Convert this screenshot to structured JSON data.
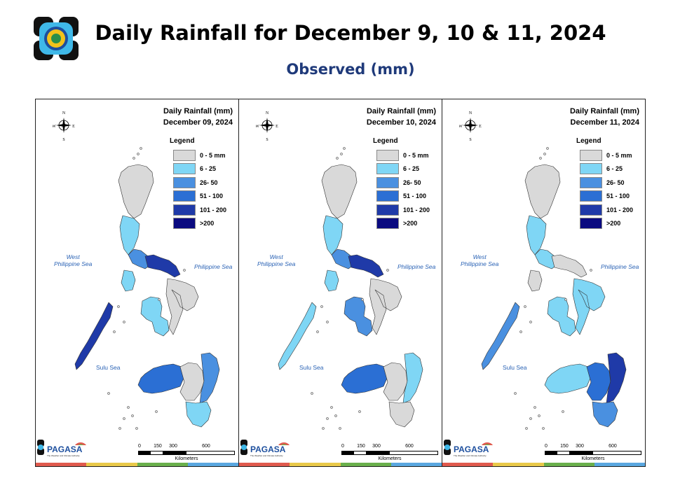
{
  "title": "Daily Rainfall for December 9, 10 & 11, 2024",
  "subtitle": "Observed (mm)",
  "colors": {
    "c0": "#d9d9d9",
    "c1": "#7fd6f5",
    "c2": "#4a90e0",
    "c3": "#2b6fd4",
    "c4": "#1f3aa8",
    "c5": "#0a0a80",
    "title_blue": "#1f3a7a",
    "sea_text": "#2b63b5"
  },
  "legend": {
    "title": "Legend",
    "items": [
      {
        "label": "0 - 5 mm",
        "color": "#d9d9d9"
      },
      {
        "label": "6 - 25",
        "color": "#7fd6f5"
      },
      {
        "label": "26- 50",
        "color": "#4a90e0"
      },
      {
        "label": "51 - 100",
        "color": "#2b6fd4"
      },
      {
        "label": "101 - 200",
        "color": "#1f3aa8"
      },
      {
        "label": ">200",
        "color": "#0a0a80"
      }
    ]
  },
  "labels": {
    "west_sea": "West\nPhilippine Sea",
    "philippine_sea": "Philippine Sea",
    "sulu_sea": "Sulu Sea",
    "scale_ticks": [
      "0",
      "150",
      "300",
      "600"
    ],
    "scale_unit": "Kilometers",
    "compass": {
      "n": "N",
      "e": "E",
      "s": "S",
      "w": "W"
    },
    "agency": "PAGASA",
    "agency_tagline": "The Weather and Climate Authority"
  },
  "panels": [
    {
      "heading": "Daily Rainfall (mm)",
      "date": "December 09, 2024",
      "regions": {
        "north_luzon": "#d9d9d9",
        "central_luzon": "#7fd6f5",
        "south_luzon": "#4a90e0",
        "bicol": "#1f3aa8",
        "mindoro": "#7fd6f5",
        "palawan": "#1f3aa8",
        "visayas_west": "#7fd6f5",
        "visayas_east": "#d9d9d9",
        "mindanao_west": "#2b6fd4",
        "mindanao_central": "#d9d9d9",
        "mindanao_east": "#4a90e0",
        "mindanao_south": "#7fd6f5"
      }
    },
    {
      "heading": "Daily Rainfall (mm)",
      "date": "December 10, 2024",
      "regions": {
        "north_luzon": "#d9d9d9",
        "central_luzon": "#7fd6f5",
        "south_luzon": "#4a90e0",
        "bicol": "#1f3aa8",
        "mindoro": "#7fd6f5",
        "palawan": "#7fd6f5",
        "visayas_west": "#4a90e0",
        "visayas_east": "#d9d9d9",
        "mindanao_west": "#2b6fd4",
        "mindanao_central": "#d9d9d9",
        "mindanao_east": "#7fd6f5",
        "mindanao_south": "#d9d9d9"
      }
    },
    {
      "heading": "Daily Rainfall (mm)",
      "date": "December 11, 2024",
      "regions": {
        "north_luzon": "#d9d9d9",
        "central_luzon": "#7fd6f5",
        "south_luzon": "#7fd6f5",
        "bicol": "#d9d9d9",
        "mindoro": "#d9d9d9",
        "palawan": "#4a90e0",
        "visayas_west": "#7fd6f5",
        "visayas_east": "#7fd6f5",
        "mindanao_west": "#7fd6f5",
        "mindanao_central": "#2b6fd4",
        "mindanao_east": "#1f3aa8",
        "mindanao_south": "#4a90e0"
      }
    }
  ],
  "footer_stripe": [
    "#e05a4e",
    "#e9c94a",
    "#6ab04c",
    "#5aa7e0"
  ]
}
